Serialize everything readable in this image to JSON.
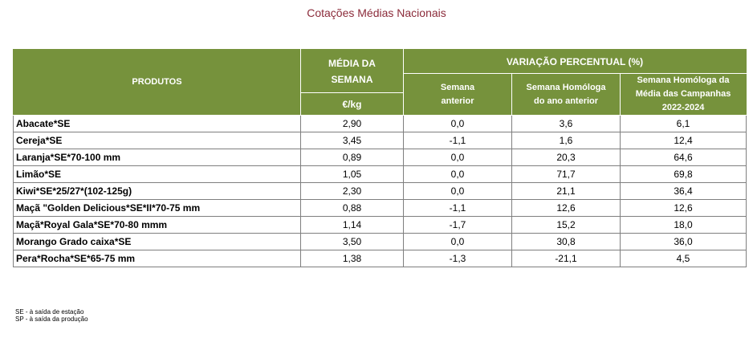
{
  "title": "Cotações Médias Nacionais",
  "header": {
    "products": "PRODUTOS",
    "average_line1": "MÉDIA DA",
    "average_line2": "SEMANA",
    "unit": "€/kg",
    "variation": "VARIAÇÃO PERCENTUAL (%)",
    "prev_week_line1": "Semana",
    "prev_week_line2": "anterior",
    "homolog_prev_year_line1": "Semana Homóloga",
    "homolog_prev_year_line2": "do ano anterior",
    "homolog_campaigns_line1": "Semana Homóloga da",
    "homolog_campaigns_line2": "Média das Campanhas",
    "homolog_campaigns_line3": "2022-2024"
  },
  "rows": [
    {
      "product": "Abacate*SE",
      "price": "2,90",
      "prev_week": "0,0",
      "prev_year": "3,6",
      "campaigns": "6,1"
    },
    {
      "product": "Cereja*SE",
      "price": "3,45",
      "prev_week": "-1,1",
      "prev_year": "1,6",
      "campaigns": "12,4"
    },
    {
      "product": "Laranja*SE*70-100 mm",
      "price": "0,89",
      "prev_week": "0,0",
      "prev_year": "20,3",
      "campaigns": "64,6"
    },
    {
      "product": "Limão*SE",
      "price": "1,05",
      "prev_week": "0,0",
      "prev_year": "71,7",
      "campaigns": "69,8"
    },
    {
      "product": "Kiwi*SE*25/27*(102-125g)",
      "price": "2,30",
      "prev_week": "0,0",
      "prev_year": "21,1",
      "campaigns": "36,4"
    },
    {
      "product": "Maçã \"Golden Delicious*SE*II*70-75 mm",
      "price": "0,88",
      "prev_week": "-1,1",
      "prev_year": "12,6",
      "campaigns": "12,6"
    },
    {
      "product": "Maçã*Royal Gala*SE*70-80 mmm",
      "price": "1,14",
      "prev_week": "-1,7",
      "prev_year": "15,2",
      "campaigns": "18,0"
    },
    {
      "product": "Morango Grado caixa*SE",
      "price": "3,50",
      "prev_week": "0,0",
      "prev_year": "30,8",
      "campaigns": "36,0"
    },
    {
      "product": "Pera*Rocha*SE*65-75 mm",
      "price": "1,38",
      "prev_week": "-1,3",
      "prev_year": "-21,1",
      "campaigns": "4,5"
    }
  ],
  "footnotes": {
    "se": "SE - à saída de estação",
    "sp": "SP - à saída da produção"
  },
  "colors": {
    "header_bg": "#76923c",
    "title": "#8b2b3a"
  }
}
